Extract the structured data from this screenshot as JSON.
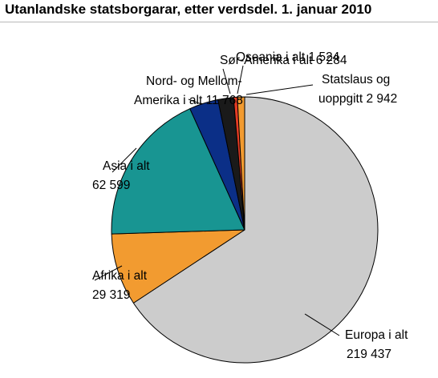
{
  "chart_data": {
    "type": "pie",
    "title": "Utanlandske statsborgarar, etter verdsdel. 1. januar 2010",
    "slices": [
      {
        "label": [
          "Europa i alt",
          "219 437"
        ],
        "value": 219437,
        "color": "#cccccc"
      },
      {
        "label": [
          "Afrika i alt",
          "29 319"
        ],
        "value": 29319,
        "color": "#f29b30"
      },
      {
        "label": [
          "Asia i alt",
          "62 599"
        ],
        "value": 62599,
        "color": "#189592"
      },
      {
        "label": [
          "Nord- og Mellom-",
          "Amerika i alt  11 768"
        ],
        "value": 11768,
        "color": "#0b2f87"
      },
      {
        "label": [
          "Sør-Amerika i alt 6 284"
        ],
        "value": 6284,
        "color": "#1a1a1a"
      },
      {
        "label": [
          "Oseania i alt 1 524"
        ],
        "value": 1524,
        "color": "#e63c24"
      },
      {
        "label": [
          "Statslaus og",
          "uoppgitt 2 942"
        ],
        "value": 2942,
        "color": "#f29b30"
      }
    ]
  }
}
